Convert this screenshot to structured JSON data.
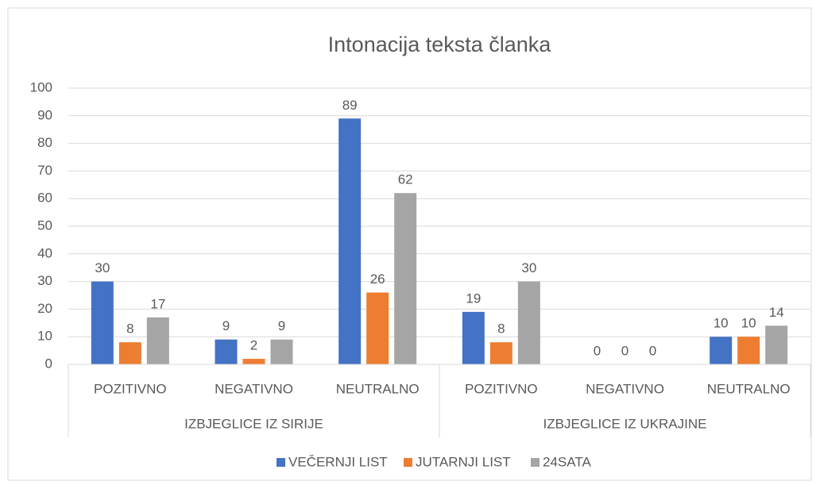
{
  "chart_data": {
    "type": "bar",
    "title": "Intonacija teksta članka",
    "categories": [
      "POZITIVNO",
      "NEGATIVNO",
      "NEUTRALNO",
      "POZITIVNO",
      "NEGATIVNO",
      "NEUTRALNO"
    ],
    "category_groups": [
      "IZBJEGLICE IZ SIRIJE",
      "IZBJEGLICE IZ UKRAJINE"
    ],
    "series": [
      {
        "name": "VEČERNJI LIST",
        "color": "#4472c4",
        "values": [
          30,
          9,
          89,
          19,
          0,
          10
        ]
      },
      {
        "name": "JUTARNJI LIST",
        "color": "#ed7d31",
        "values": [
          8,
          2,
          26,
          8,
          0,
          10
        ]
      },
      {
        "name": "24SATA",
        "color": "#a5a5a5",
        "values": [
          17,
          9,
          62,
          30,
          0,
          14
        ]
      }
    ],
    "ylim": [
      0,
      100
    ],
    "yticks": [
      0,
      10,
      20,
      30,
      40,
      50,
      60,
      70,
      80,
      90,
      100
    ],
    "grid": true,
    "legend": "bottom"
  }
}
